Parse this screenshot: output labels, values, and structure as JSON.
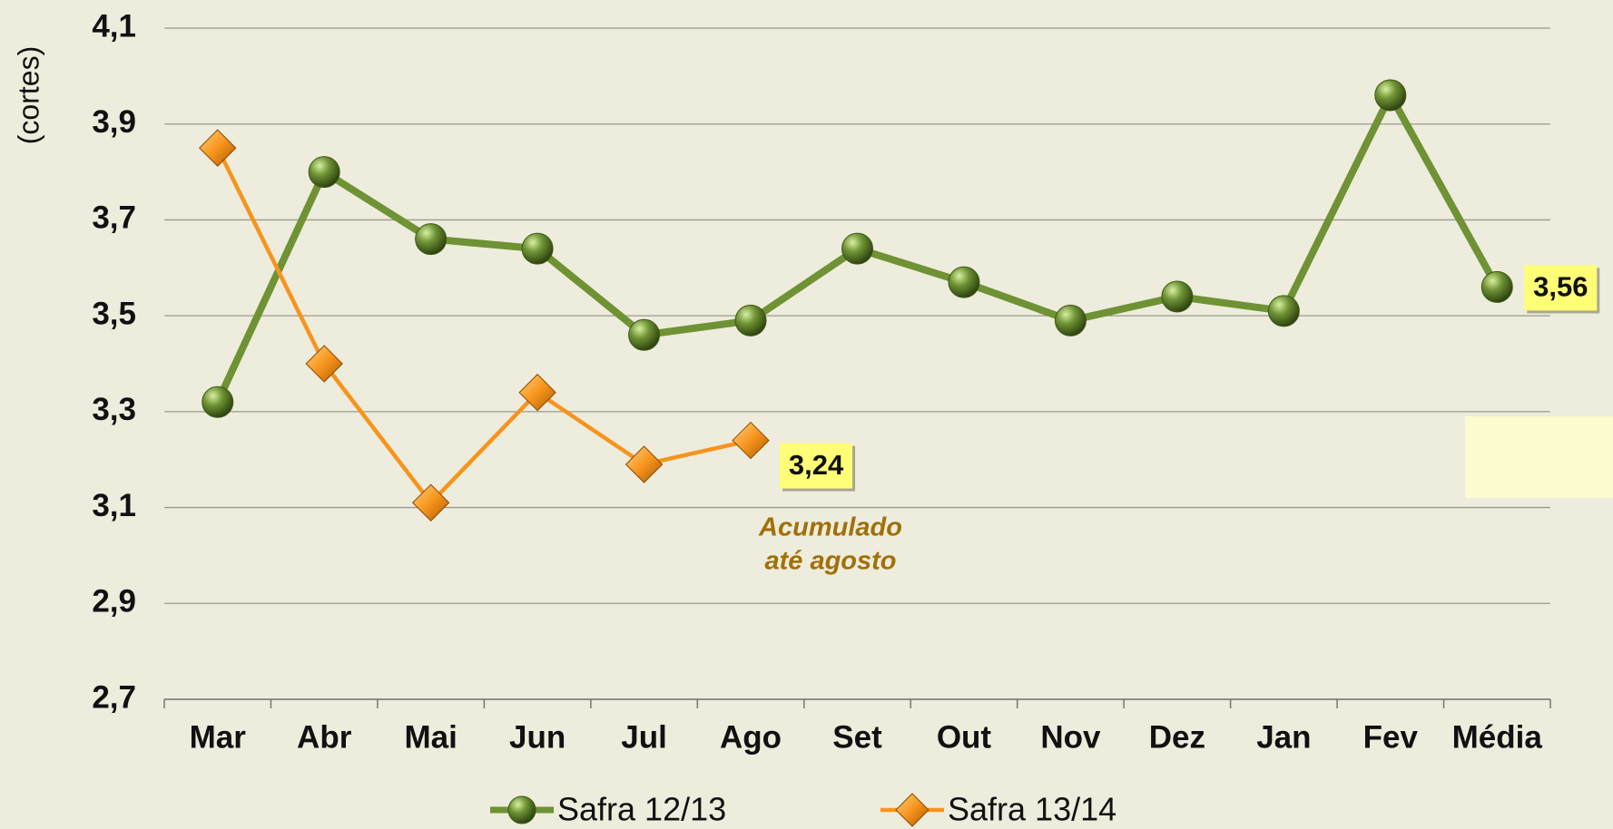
{
  "chart_data": {
    "type": "line",
    "y_label": "(cortes)",
    "categories": [
      "Mar",
      "Abr",
      "Mai",
      "Jun",
      "Jul",
      "Ago",
      "Set",
      "Out",
      "Nov",
      "Dez",
      "Jan",
      "Fev",
      "Média"
    ],
    "series": [
      {
        "name": "Safra 12/13",
        "color": "#6e9234",
        "marker": "circle",
        "values": [
          3.32,
          3.8,
          3.66,
          3.64,
          3.46,
          3.49,
          3.64,
          3.57,
          3.49,
          3.54,
          3.51,
          3.96,
          3.56
        ],
        "value_labels": [
          null,
          null,
          null,
          null,
          null,
          null,
          null,
          null,
          null,
          null,
          null,
          null,
          "3,56"
        ]
      },
      {
        "name": "Safra 13/14",
        "color": "#f7941d",
        "marker": "diamond",
        "values": [
          3.85,
          3.4,
          3.11,
          3.34,
          3.19,
          3.24,
          null,
          null,
          null,
          null,
          null,
          null,
          null
        ],
        "value_labels": [
          null,
          null,
          null,
          null,
          null,
          "3,24",
          null,
          null,
          null,
          null,
          null,
          null,
          null
        ]
      }
    ],
    "annotation": [
      "Acumulado",
      "até agosto"
    ],
    "ylim": [
      2.7,
      4.1
    ],
    "yticks": [
      {
        "value": 2.7,
        "label": "2,7"
      },
      {
        "value": 2.9,
        "label": "2,9"
      },
      {
        "value": 3.1,
        "label": "3,1"
      },
      {
        "value": 3.3,
        "label": "3,3"
      },
      {
        "value": 3.5,
        "label": "3,5"
      },
      {
        "value": 3.7,
        "label": "3,7"
      },
      {
        "value": 3.9,
        "label": "3,9"
      },
      {
        "value": 4.1,
        "label": "4,1"
      }
    ],
    "grid": true,
    "legend": "bottom"
  }
}
